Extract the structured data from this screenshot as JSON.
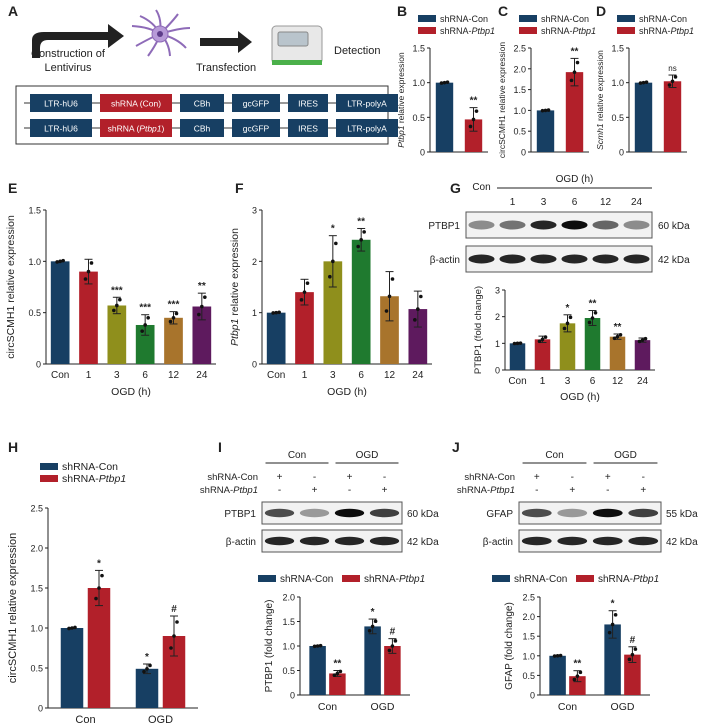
{
  "colors": {
    "navy": "#173f63",
    "red": "#b2202a",
    "olive": "#8f8f1c",
    "green": "#1f7a2f",
    "brown": "#a8742c",
    "purple": "#5e1a5e",
    "construct_box": "#173f63",
    "construct_red": "#b2202a"
  },
  "panel_labels": [
    "A",
    "B",
    "C",
    "D",
    "E",
    "F",
    "G",
    "H",
    "I",
    "J"
  ],
  "schematic": {
    "step1": "Construction of\nLentivirus",
    "step2": "Transfection",
    "step3": "Detection",
    "construct_con": [
      "LTR-hU6",
      "shRNA (Con)",
      "CBh",
      "gcGFP",
      "IRES",
      "LTR-polyA"
    ],
    "construct_ptbp1": [
      "LTR-hU6",
      "shRNA (Ptbp1)",
      "CBh",
      "gcGFP",
      "IRES",
      "LTR-polyA"
    ]
  },
  "legend": {
    "con": "shRNA-Con",
    "ptbp1": "shRNA-Ptbp1"
  },
  "chart_data": [
    {
      "id": "B",
      "type": "bar",
      "ylabel": "Ptbp1 relative expression",
      "ylim": [
        0,
        1.5
      ],
      "ticks": [
        0,
        0.5,
        1.0,
        1.5
      ],
      "categories": [
        "shRNA-Con",
        "shRNA-Ptbp1"
      ],
      "values": [
        1.0,
        0.47
      ],
      "errors": [
        0,
        0.17
      ],
      "significance": [
        "",
        "**"
      ],
      "legend": [
        "shRNA-Con",
        "shRNA-Ptbp1"
      ]
    },
    {
      "id": "C",
      "type": "bar",
      "ylabel": "circSCMH1 relative expression",
      "ylim": [
        0,
        2.5
      ],
      "ticks": [
        0,
        0.5,
        1.0,
        1.5,
        2.0,
        2.5
      ],
      "categories": [
        "shRNA-Con",
        "shRNA-Ptbp1"
      ],
      "values": [
        1.0,
        1.92
      ],
      "errors": [
        0,
        0.33
      ],
      "significance": [
        "",
        "**"
      ],
      "legend": [
        "shRNA-Con",
        "shRNA-Ptbp1"
      ]
    },
    {
      "id": "D",
      "type": "bar",
      "ylabel": "Scmh1 relative expression",
      "ylim": [
        0,
        1.5
      ],
      "ticks": [
        0,
        0.5,
        1.0,
        1.5
      ],
      "categories": [
        "shRNA-Con",
        "shRNA-Ptbp1"
      ],
      "values": [
        1.0,
        1.02
      ],
      "errors": [
        0,
        0.09
      ],
      "significance": [
        "",
        "ns"
      ],
      "legend": [
        "shRNA-Con",
        "shRNA-Ptbp1"
      ]
    },
    {
      "id": "E",
      "type": "bar",
      "ylabel": "circSCMH1 relative expression",
      "xlabel": "OGD (h)",
      "ylim": [
        0,
        1.5
      ],
      "ticks": [
        0,
        0.5,
        1.0,
        1.5
      ],
      "categories": [
        "Con",
        "1",
        "3",
        "6",
        "12",
        "24"
      ],
      "values": [
        1.0,
        0.9,
        0.57,
        0.38,
        0.45,
        0.56
      ],
      "errors": [
        0,
        0.12,
        0.08,
        0.1,
        0.06,
        0.13
      ],
      "significance": [
        "",
        "",
        "***",
        "***",
        "***",
        "**"
      ]
    },
    {
      "id": "F",
      "type": "bar",
      "ylabel": "Ptbp1 relative expression",
      "xlabel": "OGD (h)",
      "ylim": [
        0,
        3
      ],
      "ticks": [
        0,
        1,
        2,
        3
      ],
      "categories": [
        "Con",
        "1",
        "3",
        "6",
        "12",
        "24"
      ],
      "values": [
        1.0,
        1.4,
        2.0,
        2.42,
        1.32,
        1.07
      ],
      "errors": [
        0,
        0.25,
        0.5,
        0.22,
        0.48,
        0.35
      ],
      "significance": [
        "",
        "",
        "*",
        "**",
        "",
        ""
      ]
    },
    {
      "id": "G",
      "type": "bar",
      "ylabel": "PTBP1 (fold change)",
      "xlabel": "OGD (h)",
      "ylim": [
        0,
        3
      ],
      "ticks": [
        0,
        1,
        2,
        3
      ],
      "categories": [
        "Con",
        "1",
        "3",
        "6",
        "12",
        "24"
      ],
      "values": [
        1.0,
        1.15,
        1.75,
        1.95,
        1.25,
        1.12
      ],
      "errors": [
        0,
        0.12,
        0.32,
        0.28,
        0.1,
        0.08
      ],
      "significance": [
        "",
        "",
        "*",
        "**",
        "**",
        ""
      ]
    },
    {
      "id": "H",
      "type": "bar",
      "ylabel": "circSCMH1 relative expression",
      "ylim": [
        0,
        2.5
      ],
      "ticks": [
        0,
        0.5,
        1.0,
        1.5,
        2.0,
        2.5
      ],
      "categories": [
        "Con",
        "OGD"
      ],
      "series": [
        {
          "name": "shRNA-Con",
          "values": [
            1.0,
            0.49
          ],
          "errors": [
            0,
            0.06
          ]
        },
        {
          "name": "shRNA-Ptbp1",
          "values": [
            1.5,
            0.9
          ],
          "errors": [
            0.22,
            0.25
          ]
        }
      ],
      "significance": [
        [
          "",
          "*"
        ],
        [
          "*",
          "#"
        ]
      ]
    },
    {
      "id": "I",
      "type": "bar",
      "ylabel": "PTBP1 (fold change)",
      "ylim": [
        0,
        2
      ],
      "ticks": [
        0,
        0.5,
        1.0,
        1.5,
        2.0
      ],
      "categories": [
        "Con",
        "OGD"
      ],
      "series": [
        {
          "name": "shRNA-Con",
          "values": [
            1.0,
            1.4
          ],
          "errors": [
            0,
            0.15
          ]
        },
        {
          "name": "shRNA-Ptbp1",
          "values": [
            0.44,
            1.0
          ],
          "errors": [
            0.06,
            0.15
          ]
        }
      ],
      "significance": [
        [
          "",
          "**"
        ],
        [
          "*",
          "#"
        ]
      ]
    },
    {
      "id": "J",
      "type": "bar",
      "ylabel": "GFAP (fold change)",
      "ylim": [
        0,
        2.5
      ],
      "ticks": [
        0,
        0.5,
        1.0,
        1.5,
        2.0,
        2.5
      ],
      "categories": [
        "Con",
        "OGD"
      ],
      "series": [
        {
          "name": "shRNA-Con",
          "values": [
            1.0,
            1.8
          ],
          "errors": [
            0,
            0.35
          ]
        },
        {
          "name": "shRNA-Ptbp1",
          "values": [
            0.48,
            1.03
          ],
          "errors": [
            0.14,
            0.2
          ]
        }
      ],
      "significance": [
        [
          "",
          "**"
        ],
        [
          "*",
          "#"
        ]
      ]
    }
  ],
  "western_G": {
    "header": "OGD (h)",
    "con": "Con",
    "lanes": [
      "1",
      "3",
      "6",
      "12",
      "24"
    ],
    "rows": [
      {
        "protein": "PTBP1",
        "kda": "60 kDa",
        "intensity": [
          0.45,
          0.55,
          0.85,
          0.95,
          0.6,
          0.45
        ]
      },
      {
        "protein": "β-actin",
        "kda": "42 kDa",
        "intensity": [
          0.85,
          0.85,
          0.85,
          0.85,
          0.85,
          0.85
        ]
      }
    ]
  },
  "western_I": {
    "groups": [
      "Con",
      "OGD"
    ],
    "cond_rows": [
      {
        "label": "shRNA-Con",
        "signs": [
          "+",
          "-",
          "+",
          "-"
        ]
      },
      {
        "label": "shRNA-Ptbp1",
        "signs": [
          "-",
          "+",
          "-",
          "+"
        ]
      }
    ],
    "rows": [
      {
        "protein": "PTBP1",
        "kda": "60 kDa",
        "intensity": [
          0.7,
          0.4,
          0.95,
          0.75
        ]
      },
      {
        "protein": "β-actin",
        "kda": "42 kDa",
        "intensity": [
          0.85,
          0.85,
          0.85,
          0.85
        ]
      }
    ]
  },
  "western_J": {
    "groups": [
      "Con",
      "OGD"
    ],
    "cond_rows": [
      {
        "label": "shRNA-Con",
        "signs": [
          "+",
          "-",
          "+",
          "-"
        ]
      },
      {
        "label": "shRNA-Ptbp1",
        "signs": [
          "-",
          "+",
          "-",
          "+"
        ]
      }
    ],
    "rows": [
      {
        "protein": "GFAP",
        "kda": "55 kDa",
        "intensity": [
          0.7,
          0.4,
          0.95,
          0.75
        ]
      },
      {
        "protein": "β-actin",
        "kda": "42 kDa",
        "intensity": [
          0.85,
          0.85,
          0.85,
          0.85
        ]
      }
    ]
  }
}
